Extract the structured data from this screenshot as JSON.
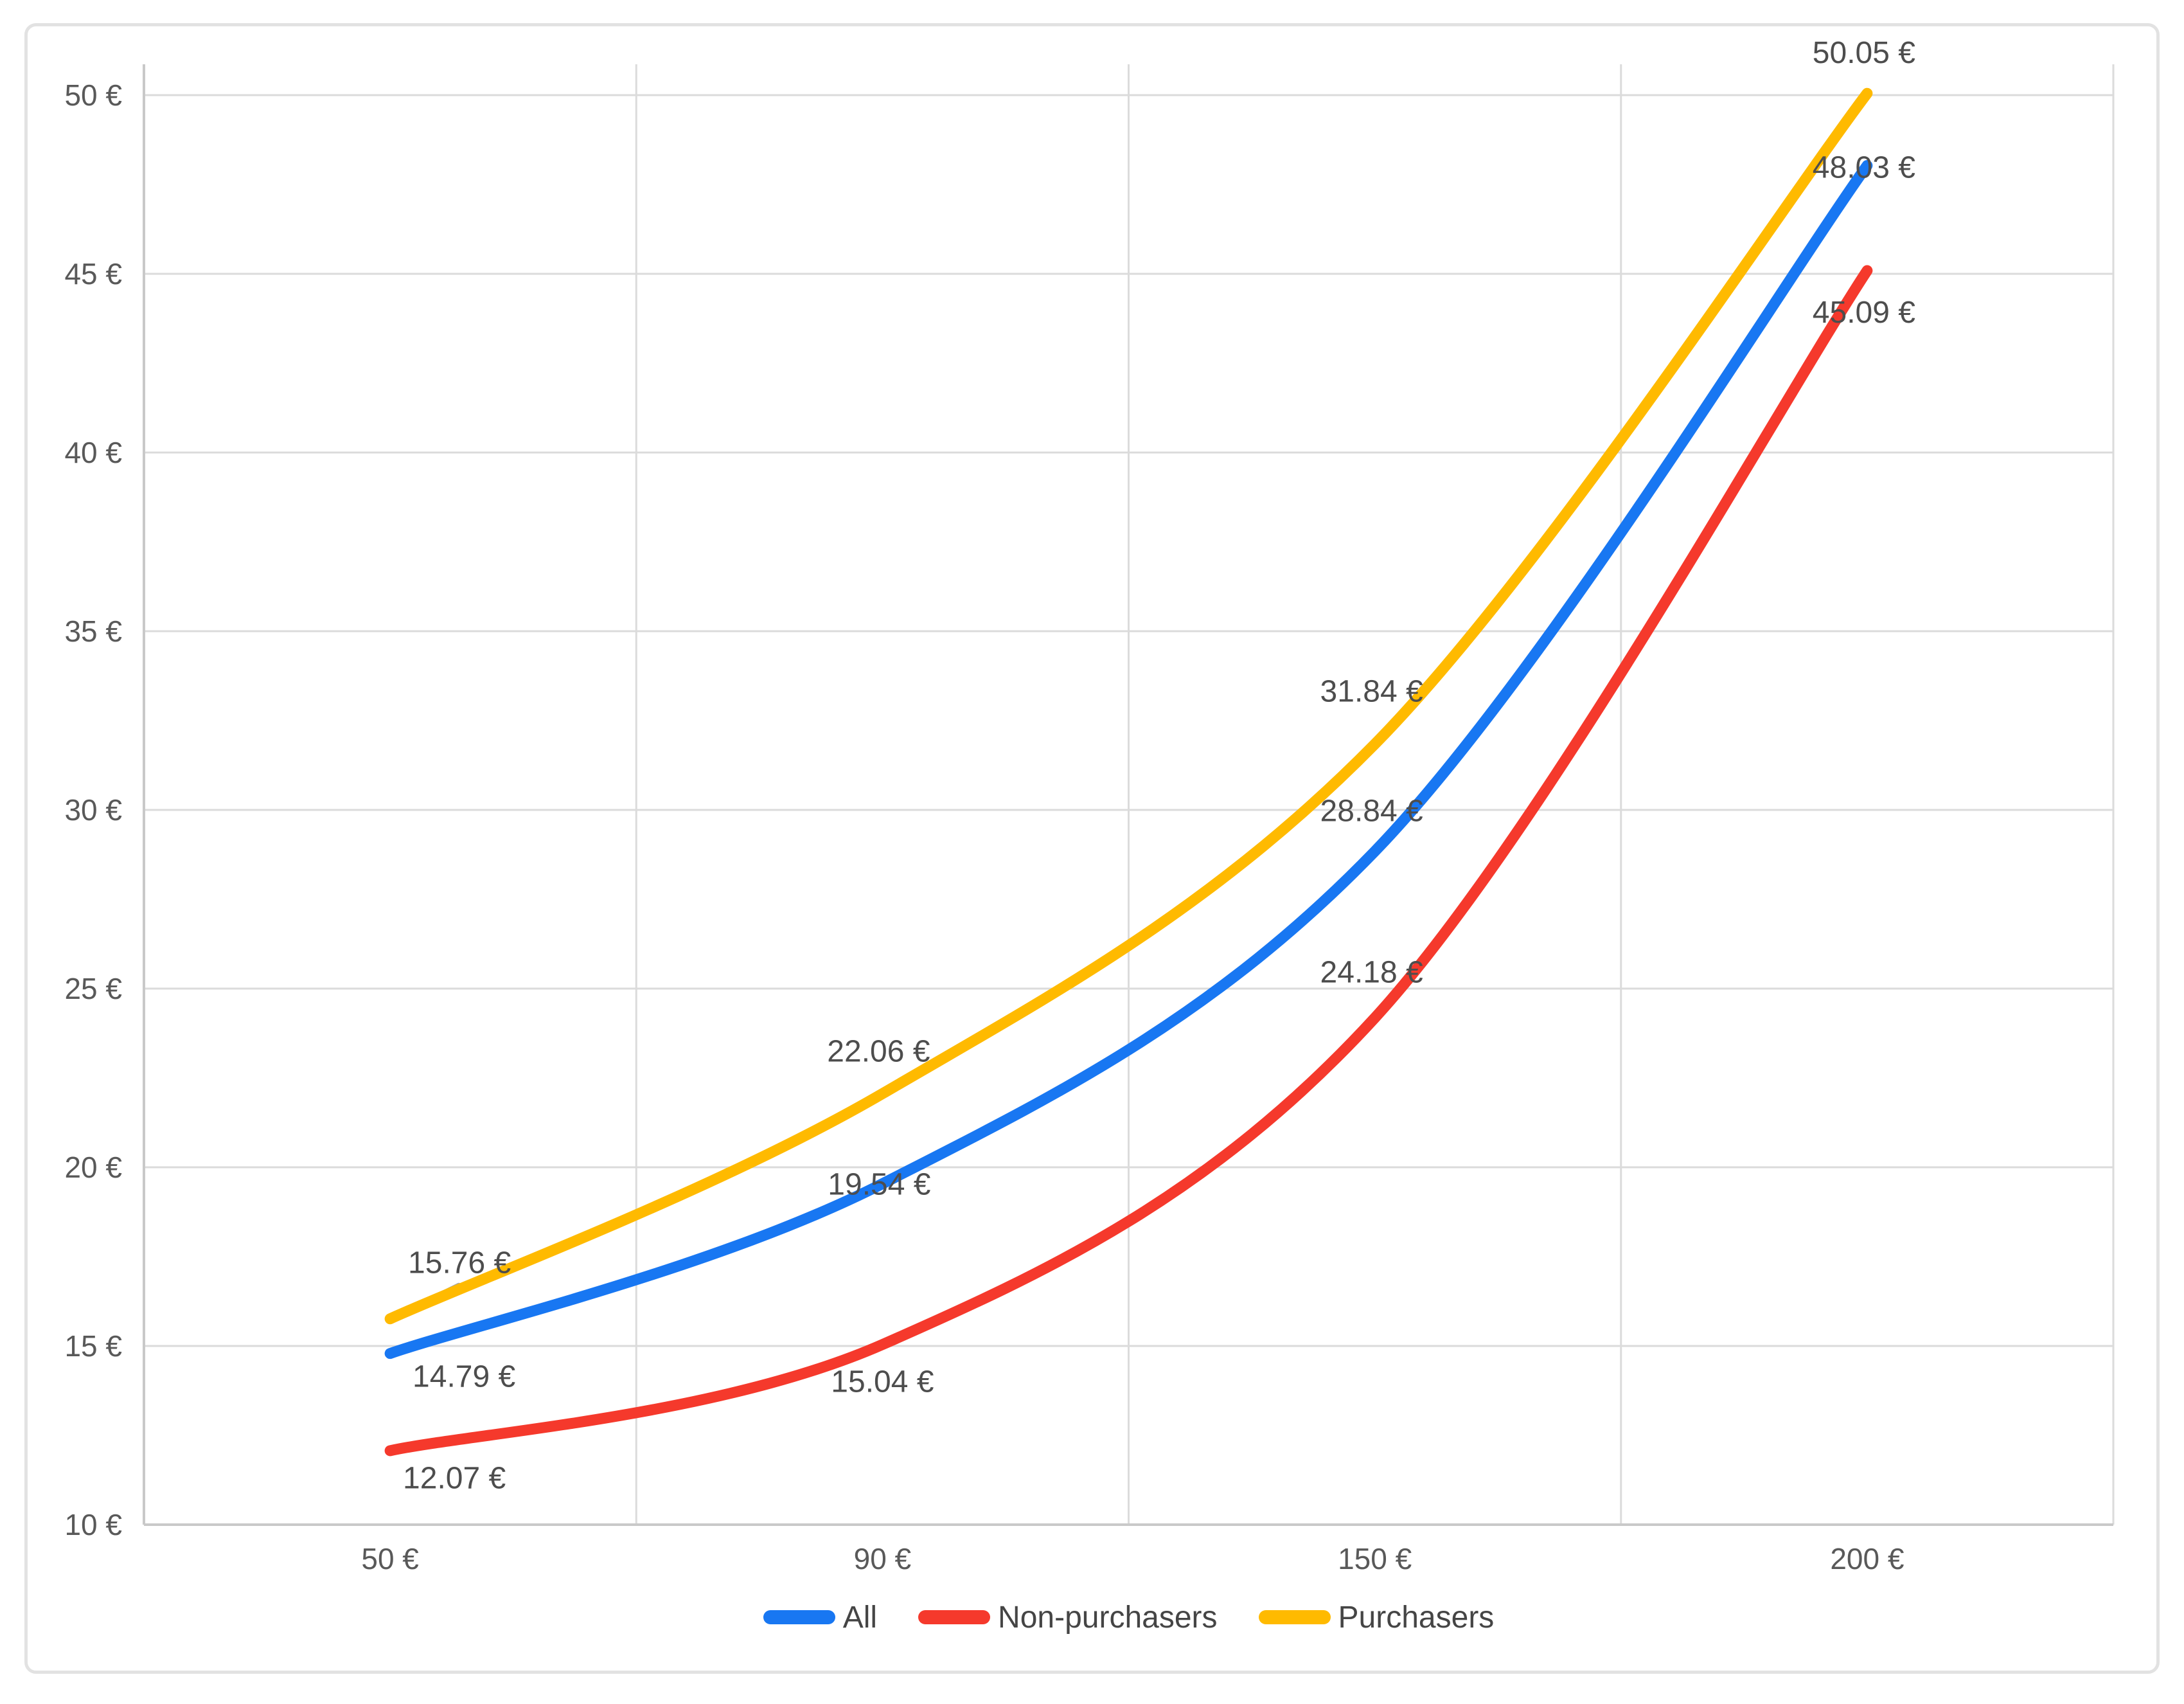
{
  "chart_data": {
    "type": "line",
    "title": "",
    "xlabel": "",
    "ylabel": "",
    "smooth": true,
    "grid": true,
    "categories": [
      "50 €",
      "90 €",
      "150 €",
      "200 €"
    ],
    "ylim": [
      10,
      50
    ],
    "y_step": 5,
    "y_tick_labels": [
      "50 €",
      "45 €",
      "40 €",
      "35 €",
      "30 €",
      "25 €",
      "20 €",
      "15 €",
      "10 €"
    ],
    "currency_suffix": " €",
    "series": [
      {
        "name": "All",
        "color": "#1877F2",
        "values": [
          14.79,
          19.54,
          28.84,
          48.03
        ],
        "point_labels": [
          "14.79 €",
          "19.54 €",
          "28.84 €",
          "48.03 €"
        ],
        "label_offsets": [
          [
            115,
            35
          ],
          [
            -5,
            0
          ],
          [
            -5,
            -64
          ],
          [
            -5,
            2
          ]
        ]
      },
      {
        "name": "Non-purchasers",
        "color": "#F5392C",
        "values": [
          12.07,
          15.04,
          24.18,
          45.09
        ],
        "point_labels": [
          "12.07 €",
          "15.04 €",
          "24.18 €",
          "45.09 €"
        ],
        "label_offsets": [
          [
            100,
            42
          ],
          [
            0,
            57
          ],
          [
            -5,
            -72
          ],
          [
            -5,
            64
          ]
        ]
      },
      {
        "name": "Purchasers",
        "color": "#FFBA00",
        "values": [
          15.76,
          22.06,
          31.84,
          50.05
        ],
        "point_labels": [
          "15.76 €",
          "22.06 €",
          "31.84 €",
          "50.05 €"
        ],
        "label_offsets": [
          [
            108,
            -88
          ],
          [
            -6,
            -67
          ],
          [
            -5,
            -83
          ],
          [
            -5,
            -64
          ]
        ]
      }
    ],
    "legend": {
      "position": "bottom"
    },
    "artifact_segment": {
      "description": "short gray line stub visible under the start of the Purchasers line",
      "color": "#A6A6A6",
      "anchor_series_index": 2,
      "anchor_point_index": 0,
      "dx": 107,
      "dy": -53
    },
    "style": {
      "background": "#FFFFFF",
      "card_border_color": "#E2E2E2",
      "grid_color": "#DBDBDB",
      "axis_line_color": "#C9C9C9",
      "tick_label_color": "#595959",
      "data_label_color": "#4D4D4D",
      "legend_text_color": "#454545"
    }
  }
}
